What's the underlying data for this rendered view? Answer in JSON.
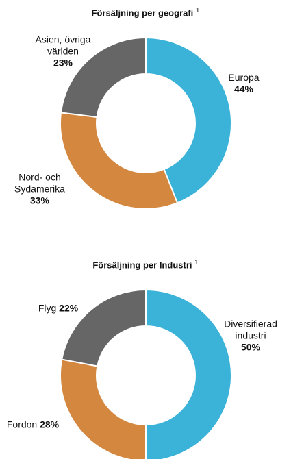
{
  "chart_data": [
    {
      "type": "donut",
      "title": "Försäljning per geografi",
      "title_note": "1",
      "categories": [
        "Europa",
        "Nord- och Sydamerika",
        "Asien, övriga världen"
      ],
      "values": [
        44,
        33,
        23
      ],
      "value_labels": [
        "44%",
        "33%",
        "23%"
      ],
      "colors": [
        "#3bb3d8",
        "#d4873f",
        "#666666"
      ]
    },
    {
      "type": "donut",
      "title": "Försäljning per Industri",
      "title_note": "1",
      "categories": [
        "Diversifierad industri",
        "Fordon",
        "Flyg"
      ],
      "values": [
        50,
        28,
        22
      ],
      "value_labels": [
        "50%",
        "28%",
        "22%"
      ],
      "colors": [
        "#3bb3d8",
        "#d4873f",
        "#666666"
      ]
    }
  ]
}
